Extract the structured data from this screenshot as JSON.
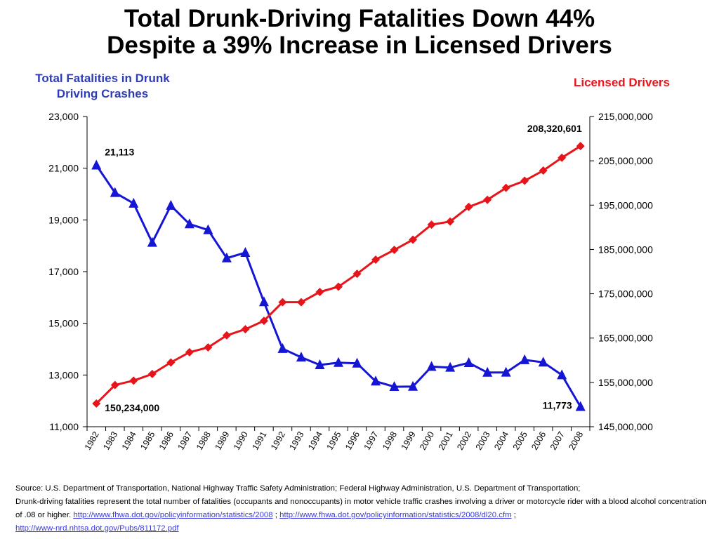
{
  "title_line1": "Total Drunk-Driving Fatalities Down 44%",
  "title_line2": "Despite a 39% Increase in Licensed Drivers",
  "chart_data": {
    "type": "line",
    "categories": [
      "1982",
      "1983",
      "1984",
      "1985",
      "1986",
      "1987",
      "1988",
      "1989",
      "1990",
      "1991",
      "1992",
      "1993",
      "1994",
      "1995",
      "1996",
      "1997",
      "1998",
      "1999",
      "2000",
      "2001",
      "2002",
      "2003",
      "2004",
      "2005",
      "2006",
      "2007",
      "2008"
    ],
    "left_axis": {
      "title": "Total Fatalities in Drunk Driving Crashes",
      "ylim": [
        11000,
        23000
      ],
      "ticks": [
        "11,000",
        "13,000",
        "15,000",
        "17,000",
        "19,000",
        "21,000",
        "23,000"
      ]
    },
    "right_axis": {
      "title": "Licensed Drivers",
      "ylim": [
        145000000,
        215000000
      ],
      "ticks": [
        "145,000,000",
        "155,000,000",
        "165,000,000",
        "175,000,000",
        "185,000,000",
        "195,000,000",
        "205,000,000",
        "215,000,000"
      ]
    },
    "series": [
      {
        "axis": "left",
        "color": "#1515d4",
        "marker": "triangle",
        "values": [
          21113,
          20051,
          19638,
          18125,
          19554,
          18838,
          18611,
          17521,
          17732,
          15827,
          14016,
          13686,
          13390,
          13478,
          13451,
          12757,
          12546,
          12555,
          13324,
          13290,
          13472,
          13096,
          13099,
          13582,
          13491,
          12998,
          11773
        ]
      },
      {
        "axis": "right",
        "color": "#e8141b",
        "marker": "diamond",
        "values": [
          150234000,
          154400000,
          155400000,
          156900000,
          159500000,
          161800000,
          162900000,
          165600000,
          167000000,
          168900000,
          173100000,
          173100000,
          175400000,
          176600000,
          179500000,
          182700000,
          184900000,
          187200000,
          190600000,
          191300000,
          194600000,
          196200000,
          198900000,
          200500000,
          202800000,
          205700000,
          208320601
        ]
      }
    ],
    "annotations": {
      "first_fatal": "21,113",
      "last_fatal": "11,773",
      "first_drivers": "150,234,000",
      "last_drivers": "208,320,601"
    }
  },
  "source": {
    "line1": "Source: U.S. Department of Transportation, National Highway Traffic Safety Administration;  Federal Highway Administration, U.S. Department of Transportation;",
    "line2": "Drunk-driving fatalities represent the total number of fatalities (occupants and nonoccupants) in motor vehicle traffic crashes involving a driver or motorcycle rider with a blood alcohol concentration of .08 or higher.",
    "link1": "http://www.fhwa.dot.gov/policyinformation/statistics/2008",
    "sep1": " ; ",
    "link2": "http://www.fhwa.dot.gov/policyinformation/statistics/2008/dl20.cfm",
    "sep2": " ;",
    "link3": "http://www-nrd.nhtsa.dot.gov/Pubs/811172.pdf"
  }
}
